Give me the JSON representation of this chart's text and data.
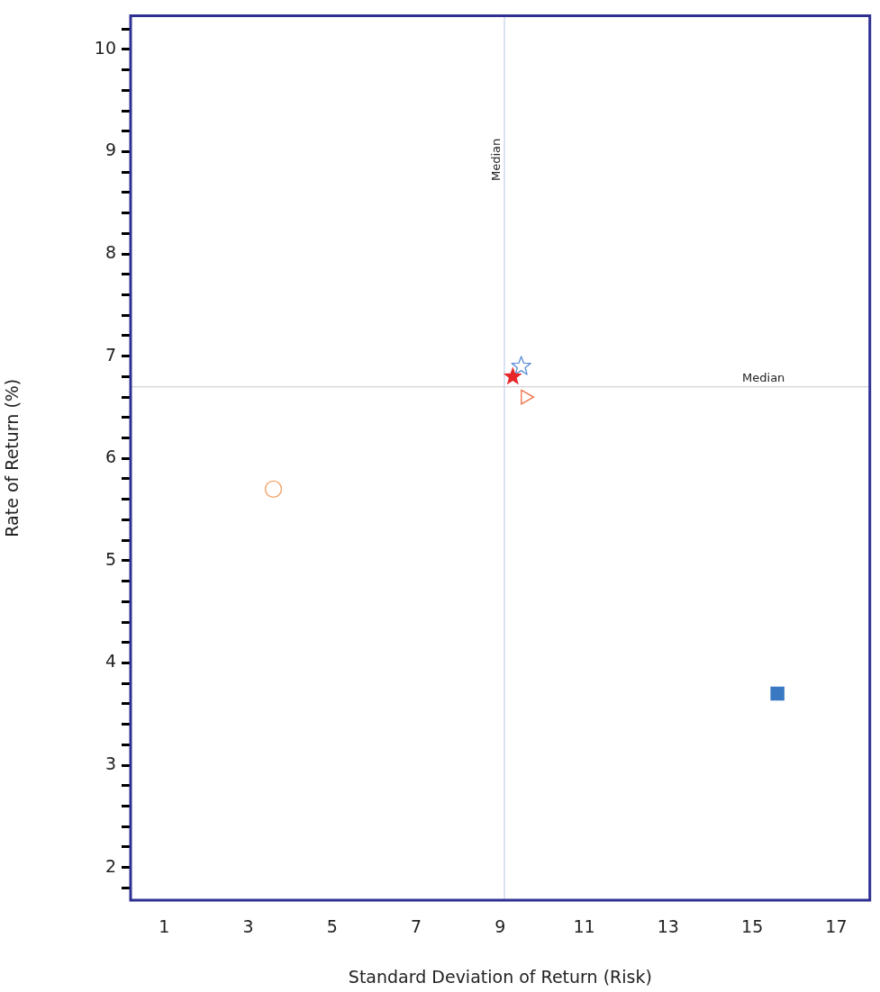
{
  "chart_data": {
    "type": "scatter",
    "xlabel": "Standard Deviation of Return (Risk)",
    "ylabel": "Rate of Return (%)",
    "series": [
      {
        "color": "#f4a062",
        "marker": "circle",
        "x": [
          3.6
        ],
        "values": [
          5.7
        ]
      },
      {
        "color": "#5b8fd6",
        "marker": "star",
        "x": [
          9.5
        ],
        "values": [
          6.9
        ]
      },
      {
        "color": "#e8262a",
        "marker": "star",
        "x": [
          9.3
        ],
        "values": [
          6.8
        ]
      },
      {
        "color": "#f07048",
        "marker": "triangle",
        "x": [
          9.6
        ],
        "values": [
          6.6
        ]
      },
      {
        "color": "#3b78c4",
        "marker": "square",
        "x": [
          15.6
        ],
        "values": [
          3.7
        ]
      }
    ],
    "xlim": [
      0.2,
      17.8
    ],
    "xticks": [
      1,
      3,
      5,
      7,
      9,
      11,
      13,
      15,
      17
    ],
    "ylim": [
      1.68,
      10.33
    ],
    "yticks": [
      {
        "value": 1.8,
        "label": null
      },
      2,
      {
        "value": 2.2,
        "label": null
      },
      {
        "value": 2.4,
        "label": null
      },
      {
        "value": 2.6,
        "label": null
      },
      {
        "value": 2.8,
        "label": null
      },
      3,
      {
        "value": 3.2,
        "label": null
      },
      {
        "value": 3.4,
        "label": null
      },
      {
        "value": 3.6,
        "label": null
      },
      {
        "value": 3.8,
        "label": null
      },
      4,
      {
        "value": 4.2,
        "label": null
      },
      {
        "value": 4.4,
        "label": null
      },
      {
        "value": 4.6,
        "label": null
      },
      {
        "value": 4.8,
        "label": null
      },
      5,
      {
        "value": 5.2,
        "label": null
      },
      {
        "value": 5.4,
        "label": null
      },
      {
        "value": 5.6,
        "label": null
      },
      {
        "value": 5.8,
        "label": null
      },
      6,
      {
        "value": 6.2,
        "label": null
      },
      {
        "value": 6.4,
        "label": null
      },
      {
        "value": 6.6,
        "label": null
      },
      {
        "value": 6.8,
        "label": null
      },
      7,
      {
        "value": 7.2,
        "label": null
      },
      {
        "value": 7.4,
        "label": null
      },
      {
        "value": 7.6,
        "label": null
      },
      {
        "value": 7.8,
        "label": null
      },
      8,
      {
        "value": 8.2,
        "label": null
      },
      {
        "value": 8.4,
        "label": null
      },
      {
        "value": 8.6,
        "label": null
      },
      {
        "value": 8.8,
        "label": null
      },
      9,
      {
        "value": 9.2,
        "label": null
      },
      {
        "value": 9.4,
        "label": null
      },
      {
        "value": 9.6,
        "label": null
      },
      {
        "value": 9.8,
        "label": null
      },
      10,
      {
        "value": 10.2,
        "label": null
      }
    ],
    "ref_lines": [
      {
        "axis": "x",
        "value": 9.1,
        "label": "Median",
        "color": "#b4c6e4"
      },
      {
        "axis": "y",
        "value": 6.7,
        "label": "Median",
        "color": "#c8c8c8"
      }
    ],
    "grid": false,
    "legend": false
  }
}
